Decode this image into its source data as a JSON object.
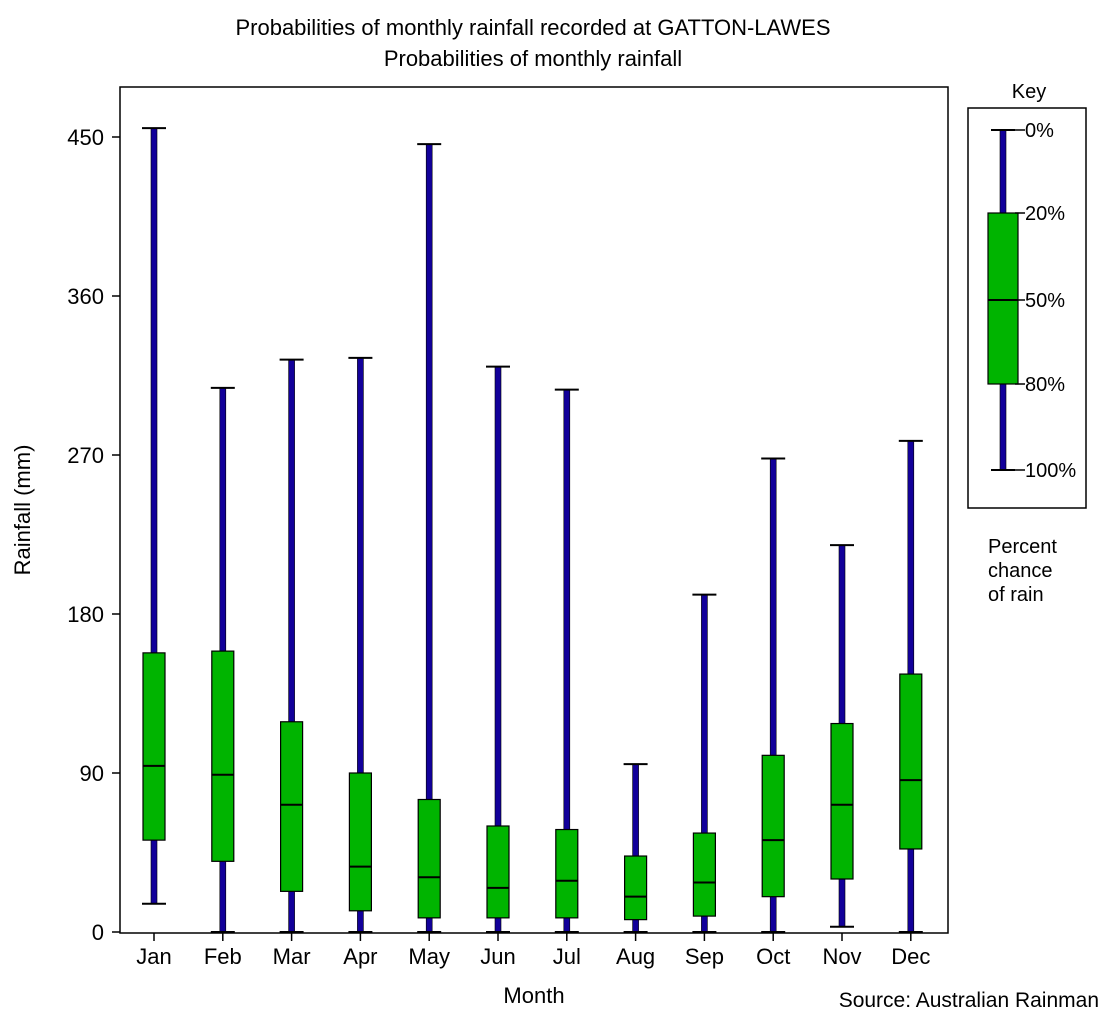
{
  "chart_data": {
    "type": "box",
    "title": "Probabilities of monthly rainfall recorded at GATTON-LAWES",
    "subtitle": "Probabilities of monthly rainfall",
    "xlabel": "Month",
    "ylabel": "Rainfall (mm)",
    "ylim": [
      0,
      450
    ],
    "yticks": [
      0,
      90,
      180,
      270,
      360,
      450
    ],
    "grid": false,
    "categories": [
      "Jan",
      "Feb",
      "Mar",
      "Apr",
      "May",
      "Jun",
      "Jul",
      "Aug",
      "Sep",
      "Oct",
      "Nov",
      "Dec"
    ],
    "series": [
      {
        "p0": [
          455,
          308,
          324,
          325,
          446,
          320,
          307,
          95,
          191,
          268,
          219,
          278
        ],
        "p20": [
          158,
          159,
          119,
          90,
          75,
          60,
          58,
          43,
          56,
          100,
          118,
          146
        ],
        "p50": [
          94,
          89,
          72,
          37,
          31,
          25,
          29,
          20,
          28,
          52,
          72,
          86
        ],
        "p80": [
          52,
          40,
          23,
          12,
          8,
          8,
          8,
          7,
          9,
          20,
          30,
          47
        ],
        "p100": [
          16,
          0,
          0,
          0,
          0,
          0,
          0,
          0,
          0,
          0,
          3,
          0
        ]
      }
    ],
    "colors": {
      "whisker": "#12009a",
      "box_fill": "#00b400",
      "outline": "#000000"
    },
    "legend": {
      "title": "Key",
      "position": "right",
      "labels": [
        "0%",
        "20%",
        "50%",
        "80%",
        "100%"
      ],
      "caption_lines": [
        "Percent",
        "chance",
        "of rain"
      ]
    }
  },
  "source_label": "Source: Australian Rainman"
}
